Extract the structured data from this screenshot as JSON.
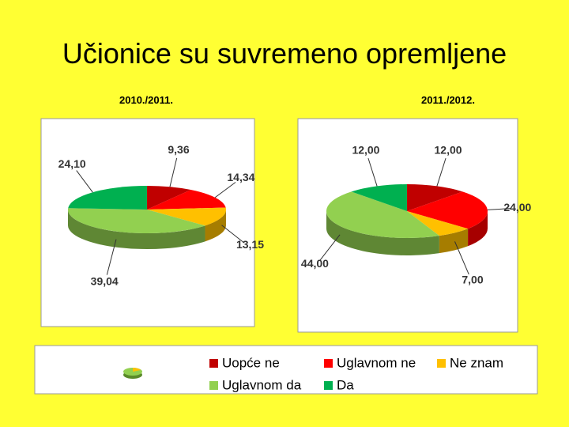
{
  "title": "Učionice su suvremeno opremljene",
  "chart_data": [
    {
      "type": "pie",
      "subtitle": "2010./2011.",
      "categories": [
        "Uopće ne",
        "Uglavnom ne",
        "Ne znam",
        "Uglavnom da",
        "Da"
      ],
      "values": [
        9.36,
        14.34,
        13.15,
        39.04,
        24.1
      ],
      "value_labels": [
        "9,36",
        "14,34",
        "13,15",
        "39,04",
        "24,10"
      ],
      "colors": [
        "#c00000",
        "#ff0000",
        "#ffc000",
        "#92d050",
        "#00b050"
      ]
    },
    {
      "type": "pie",
      "subtitle": "2011./2012.",
      "categories": [
        "Uopće ne",
        "Uglavnom ne",
        "Ne znam",
        "Uglavnom da",
        "Da"
      ],
      "values": [
        12.0,
        24.0,
        7.0,
        44.0,
        12.0
      ],
      "value_labels": [
        "12,00",
        "24,00",
        "7,00",
        "44,00",
        "12,00"
      ],
      "colors": [
        "#c00000",
        "#ff0000",
        "#ffc000",
        "#92d050",
        "#00b050"
      ]
    }
  ]
}
